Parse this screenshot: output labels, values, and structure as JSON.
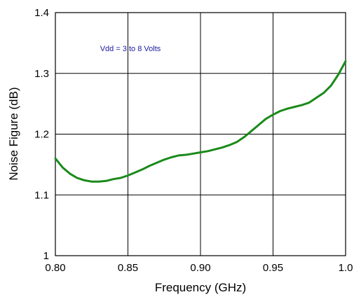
{
  "chart_data": {
    "type": "line",
    "xlabel": "Frequency (GHz)",
    "ylabel": "Noise Figure (dB)",
    "xlim": [
      0.8,
      1.0
    ],
    "ylim": [
      1.0,
      1.4
    ],
    "x_ticks": [
      "0.80",
      "0.85",
      "0.90",
      "0.95",
      "1.0"
    ],
    "y_ticks": [
      "1",
      "1.1",
      "1.2",
      "1.3",
      "1.4"
    ],
    "grid": true,
    "annotation": "Vdd = 3 to 8 Volts",
    "colors": {
      "series": "#1a8a1a",
      "annotation": "#1a1aa0",
      "grid": "#000000"
    },
    "series": [
      {
        "x": [
          0.8,
          0.805,
          0.81,
          0.815,
          0.82,
          0.825,
          0.83,
          0.835,
          0.84,
          0.845,
          0.85,
          0.855,
          0.86,
          0.865,
          0.87,
          0.875,
          0.88,
          0.885,
          0.89,
          0.895,
          0.9,
          0.905,
          0.91,
          0.915,
          0.92,
          0.925,
          0.93,
          0.935,
          0.94,
          0.945,
          0.95,
          0.955,
          0.96,
          0.965,
          0.97,
          0.975,
          0.98,
          0.985,
          0.99,
          0.995,
          1.0
        ],
        "y": [
          1.16,
          1.145,
          1.135,
          1.128,
          1.124,
          1.122,
          1.122,
          1.123,
          1.126,
          1.128,
          1.132,
          1.137,
          1.142,
          1.148,
          1.153,
          1.158,
          1.162,
          1.165,
          1.166,
          1.168,
          1.17,
          1.172,
          1.175,
          1.178,
          1.182,
          1.187,
          1.195,
          1.205,
          1.215,
          1.225,
          1.232,
          1.238,
          1.242,
          1.245,
          1.248,
          1.252,
          1.26,
          1.268,
          1.28,
          1.298,
          1.32
        ]
      }
    ]
  }
}
